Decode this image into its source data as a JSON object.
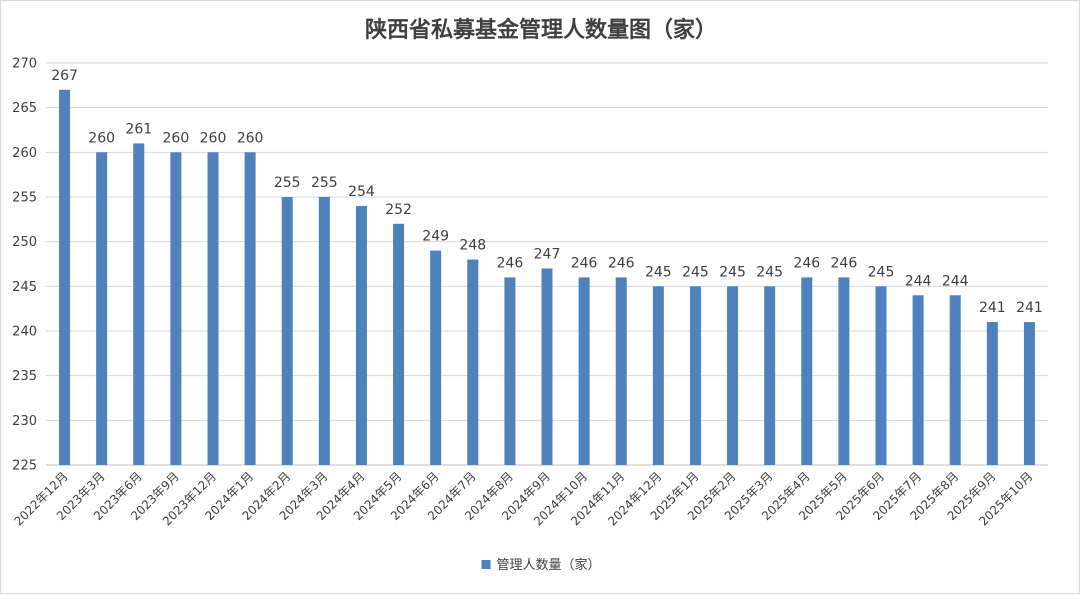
{
  "chart_data": {
    "type": "bar",
    "title": "陕西省私募基金管理人数量图（家）",
    "xlabel": "",
    "ylabel": "",
    "ylim": [
      225,
      270
    ],
    "yticks": [
      225,
      230,
      235,
      240,
      245,
      250,
      255,
      260,
      265,
      270
    ],
    "grid": true,
    "legend_position": "bottom",
    "bar_color": "#4f81bd",
    "categories": [
      "2022年12月",
      "2023年3月",
      "2023年6月",
      "2023年9月",
      "2023年12月",
      "2024年1月",
      "2024年2月",
      "2024年3月",
      "2024年4月",
      "2024年5月",
      "2024年6月",
      "2024年7月",
      "2024年8月",
      "2024年9月",
      "2024年10月",
      "2024年11月",
      "2024年12月",
      "2025年1月",
      "2025年2月",
      "2025年3月",
      "2025年4月",
      "2025年5月",
      "2025年6月",
      "2025年7月",
      "2025年8月",
      "2025年9月",
      "2025年10月"
    ],
    "series": [
      {
        "name": "管理人数量（家）",
        "values": [
          267,
          260,
          261,
          260,
          260,
          260,
          255,
          255,
          254,
          252,
          249,
          248,
          246,
          247,
          246,
          246,
          245,
          245,
          245,
          245,
          246,
          246,
          245,
          244,
          244,
          241,
          241
        ]
      }
    ]
  }
}
